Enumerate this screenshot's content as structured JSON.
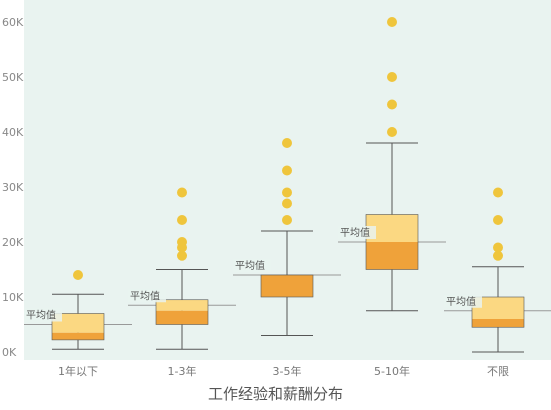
{
  "chart_data": {
    "type": "box",
    "title": "工作经验和薪酬分布",
    "categories": [
      "1年以下",
      "1-3年",
      "3-5年",
      "5-10年",
      "不限"
    ],
    "y_ticks": [
      "0K",
      "10K",
      "20K",
      "30K",
      "40K",
      "50K",
      "60K"
    ],
    "ylim": [
      -2000,
      62000
    ],
    "mean_label": "平均值",
    "grid": false,
    "series": [
      {
        "category": "1年以下",
        "min": 500,
        "q1": 2200,
        "median": 3500,
        "q3": 7000,
        "max": 10500,
        "mean": 5000,
        "outliers": [
          14000
        ]
      },
      {
        "category": "1-3年",
        "min": 500,
        "q1": 5000,
        "median": 7500,
        "q3": 9500,
        "max": 15000,
        "mean": 8500,
        "outliers": [
          17500,
          19000,
          20000,
          24000,
          29000
        ]
      },
      {
        "category": "3-5年",
        "min": 3000,
        "q1": 10000,
        "median": 14000,
        "q3": 14000,
        "max": 22000,
        "mean": 14000,
        "outliers": [
          24000,
          27000,
          29000,
          33000,
          38000
        ]
      },
      {
        "category": "5-10年",
        "min": 7500,
        "q1": 15000,
        "median": 20000,
        "q3": 25000,
        "max": 38000,
        "mean": 20000,
        "outliers": [
          40000,
          45000,
          50000,
          60000
        ]
      },
      {
        "category": "不限",
        "min": 0,
        "q1": 4500,
        "median": 6000,
        "q3": 10000,
        "max": 15500,
        "mean": 7500,
        "outliers": [
          17500,
          19000,
          24000,
          29000
        ]
      }
    ],
    "colors": {
      "background": "#e9f3f0",
      "box_lower": "#efa23a",
      "box_upper": "#fbd882",
      "outlier": "#efc53c",
      "whisker": "#555555",
      "mean_line": "#999999",
      "axis_text": "#888888",
      "mean_label_bg": "#e9f3f0"
    }
  }
}
